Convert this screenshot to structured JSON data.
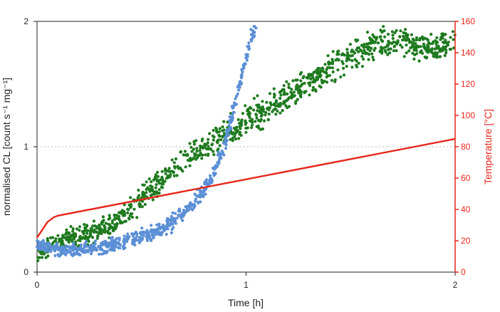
{
  "chart_data": {
    "type": "scatter",
    "xlabel": "Time [h]",
    "ylabel": "normalised CL [count s⁻¹ mg⁻¹]",
    "y2label": "Temperature [°C]",
    "xlim": [
      0,
      2
    ],
    "ylim": [
      0,
      2
    ],
    "y2lim": [
      0,
      160
    ],
    "x_ticks": [
      "0",
      "1",
      "2"
    ],
    "y_ticks": [
      "0",
      "1",
      "2"
    ],
    "y2_ticks": [
      "0",
      "20",
      "40",
      "60",
      "80",
      "100",
      "120",
      "140",
      "160"
    ],
    "grid": "horizontal dotted at y=1",
    "legend": "none",
    "colors": {
      "green_series": "#1e7a1e",
      "blue_series": "#5b8fd6",
      "temperature": "#e8251a",
      "axis": "#222222"
    },
    "series": [
      {
        "kind": "scatter",
        "color": "green_series",
        "x": [
          0.0,
          0.05,
          0.1,
          0.15,
          0.2,
          0.25,
          0.3,
          0.35,
          0.4,
          0.45,
          0.5,
          0.55,
          0.6,
          0.65,
          0.7,
          0.75,
          0.8,
          0.85,
          0.9,
          0.95,
          1.0,
          1.05,
          1.1,
          1.15,
          1.2,
          1.25,
          1.3,
          1.35,
          1.4,
          1.45,
          1.5,
          1.55,
          1.6,
          1.65,
          1.7,
          1.75,
          1.8,
          1.85,
          1.9,
          1.95,
          2.0
        ],
        "y": [
          0.15,
          0.2,
          0.24,
          0.27,
          0.29,
          0.31,
          0.34,
          0.37,
          0.42,
          0.5,
          0.58,
          0.66,
          0.74,
          0.82,
          0.88,
          0.94,
          0.99,
          1.04,
          1.1,
          1.15,
          1.2,
          1.26,
          1.3,
          1.35,
          1.4,
          1.45,
          1.52,
          1.57,
          1.62,
          1.67,
          1.72,
          1.77,
          1.8,
          1.83,
          1.84,
          1.84,
          1.82,
          1.8,
          1.78,
          1.8,
          1.85
        ],
        "spread": 0.11
      },
      {
        "kind": "scatter",
        "color": "blue_series",
        "x": [
          0.0,
          0.05,
          0.1,
          0.15,
          0.2,
          0.25,
          0.3,
          0.35,
          0.4,
          0.45,
          0.5,
          0.55,
          0.6,
          0.65,
          0.7,
          0.75,
          0.8,
          0.85,
          0.9,
          0.95,
          1.0,
          1.05
        ],
        "y": [
          0.22,
          0.2,
          0.18,
          0.17,
          0.18,
          0.19,
          0.2,
          0.21,
          0.23,
          0.25,
          0.28,
          0.31,
          0.35,
          0.4,
          0.47,
          0.55,
          0.66,
          0.82,
          1.05,
          1.35,
          1.72,
          2.0
        ],
        "spread": 0.07
      },
      {
        "kind": "line",
        "axis": "y2",
        "color": "temperature",
        "x": [
          0.0,
          0.02,
          0.05,
          0.08,
          0.1,
          2.0
        ],
        "y": [
          22,
          26,
          32,
          35,
          36,
          85
        ]
      }
    ]
  }
}
